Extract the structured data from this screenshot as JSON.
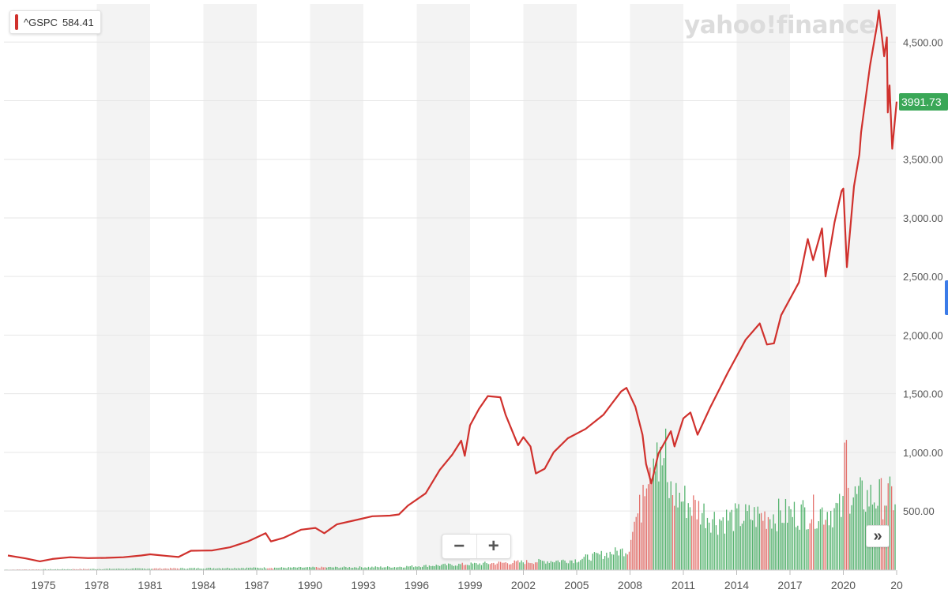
{
  "legend": {
    "symbol": "^GSPC",
    "value": "584.41",
    "color": "#d0312d"
  },
  "watermark": {
    "text": "yahoo!finance"
  },
  "price_tag": {
    "text": "3991.73",
    "color": "#3aa757"
  },
  "zoom": {
    "minus": "−",
    "plus": "+"
  },
  "scroll_button": {
    "label": "»"
  },
  "colors": {
    "line": "#d0312d",
    "vol_up": "#3aa757",
    "vol_down": "#e05a55",
    "band": "#f3f3f3",
    "grid": "#e6e6e6",
    "axis_text": "#555555"
  },
  "chart_data": {
    "type": "line",
    "title": "",
    "xlabel": "",
    "ylabel": "",
    "x_tick_labels": [
      "1975",
      "1978",
      "1981",
      "1984",
      "1987",
      "1990",
      "1993",
      "1996",
      "1999",
      "2002",
      "2005",
      "2008",
      "2011",
      "2014",
      "2017",
      "2020",
      "20"
    ],
    "y_tick_labels": [
      "500.00",
      "1,000.00",
      "1,500.00",
      "2,000.00",
      "2,500.00",
      "3,000.00",
      "3,500.00",
      "4,500.00"
    ],
    "y_ticks": [
      500,
      1000,
      1500,
      2000,
      2500,
      3000,
      3500,
      4500
    ],
    "ylim": [
      0,
      4860
    ],
    "xlim": [
      1972.9,
      2023.25
    ],
    "grid": true,
    "legend_position": "top-left",
    "series": [
      {
        "name": "^GSPC",
        "points": [
          [
            1973.0,
            120
          ],
          [
            1974.0,
            95
          ],
          [
            1974.8,
            70
          ],
          [
            1975.5,
            90
          ],
          [
            1976.5,
            105
          ],
          [
            1977.5,
            98
          ],
          [
            1978.5,
            100
          ],
          [
            1979.5,
            105
          ],
          [
            1980.5,
            120
          ],
          [
            1981.0,
            130
          ],
          [
            1982.0,
            115
          ],
          [
            1982.6,
            107
          ],
          [
            1983.3,
            160
          ],
          [
            1984.5,
            163
          ],
          [
            1985.5,
            190
          ],
          [
            1986.5,
            240
          ],
          [
            1987.5,
            310
          ],
          [
            1987.8,
            240
          ],
          [
            1988.5,
            270
          ],
          [
            1989.5,
            340
          ],
          [
            1990.3,
            355
          ],
          [
            1990.8,
            310
          ],
          [
            1991.5,
            385
          ],
          [
            1992.5,
            420
          ],
          [
            1993.5,
            455
          ],
          [
            1994.5,
            460
          ],
          [
            1995.0,
            470
          ],
          [
            1995.5,
            545
          ],
          [
            1996.5,
            650
          ],
          [
            1997.3,
            850
          ],
          [
            1998.0,
            980
          ],
          [
            1998.5,
            1100
          ],
          [
            1998.7,
            970
          ],
          [
            1999.0,
            1230
          ],
          [
            1999.5,
            1370
          ],
          [
            2000.0,
            1480
          ],
          [
            2000.7,
            1470
          ],
          [
            2001.0,
            1320
          ],
          [
            2001.7,
            1060
          ],
          [
            2002.0,
            1130
          ],
          [
            2002.4,
            1050
          ],
          [
            2002.7,
            820
          ],
          [
            2003.2,
            860
          ],
          [
            2003.7,
            1000
          ],
          [
            2004.5,
            1120
          ],
          [
            2005.5,
            1200
          ],
          [
            2006.5,
            1320
          ],
          [
            2007.0,
            1420
          ],
          [
            2007.5,
            1520
          ],
          [
            2007.8,
            1550
          ],
          [
            2008.3,
            1390
          ],
          [
            2008.7,
            1150
          ],
          [
            2008.9,
            900
          ],
          [
            2009.2,
            735
          ],
          [
            2009.6,
            990
          ],
          [
            2010.3,
            1180
          ],
          [
            2010.5,
            1050
          ],
          [
            2011.0,
            1290
          ],
          [
            2011.4,
            1340
          ],
          [
            2011.8,
            1150
          ],
          [
            2012.5,
            1380
          ],
          [
            2013.5,
            1680
          ],
          [
            2014.5,
            1960
          ],
          [
            2015.3,
            2100
          ],
          [
            2015.7,
            1920
          ],
          [
            2016.1,
            1930
          ],
          [
            2016.5,
            2170
          ],
          [
            2017.5,
            2450
          ],
          [
            2018.0,
            2820
          ],
          [
            2018.3,
            2640
          ],
          [
            2018.8,
            2910
          ],
          [
            2019.0,
            2500
          ],
          [
            2019.5,
            2960
          ],
          [
            2019.9,
            3230
          ],
          [
            2020.0,
            3250
          ],
          [
            2020.2,
            2580
          ],
          [
            2020.6,
            3270
          ],
          [
            2020.9,
            3540
          ],
          [
            2021.0,
            3730
          ],
          [
            2021.5,
            4300
          ],
          [
            2021.9,
            4650
          ],
          [
            2022.0,
            4770
          ],
          [
            2022.3,
            4380
          ],
          [
            2022.45,
            4540
          ],
          [
            2022.5,
            3900
          ],
          [
            2022.6,
            4130
          ],
          [
            2022.75,
            3590
          ],
          [
            2023.0,
            3991.73
          ]
        ]
      }
    ],
    "volume_scale_max": 2000
  }
}
